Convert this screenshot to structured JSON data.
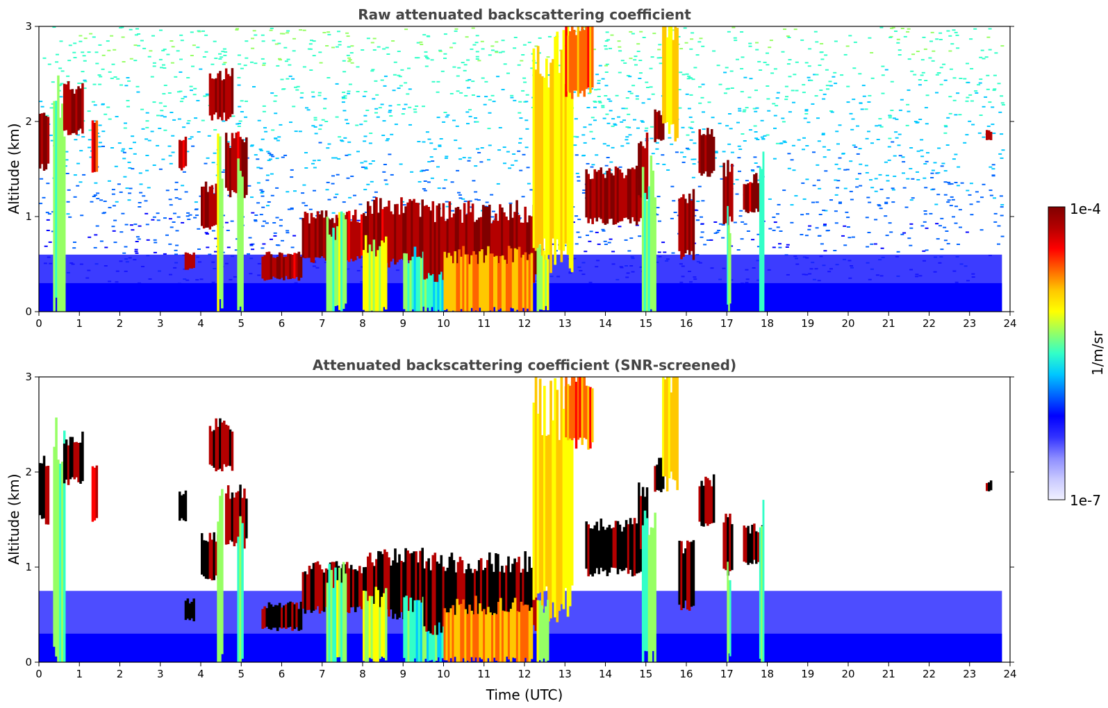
{
  "chart_data": [
    {
      "type": "heatmap",
      "title": "Raw attenuated backscattering coefficient",
      "xlabel": "",
      "ylabel": "Altitude (km)",
      "xlim": [
        0,
        24
      ],
      "ylim": [
        0,
        3
      ],
      "xticks": [
        "0",
        "1",
        "2",
        "3",
        "4",
        "5",
        "6",
        "7",
        "8",
        "9",
        "10",
        "11",
        "12",
        "13",
        "14",
        "15",
        "16",
        "17",
        "18",
        "19",
        "20",
        "21",
        "22",
        "23",
        "24"
      ],
      "yticks": [
        "0",
        "1",
        "2",
        "3"
      ],
      "data_extent_x": [
        0,
        23.8
      ],
      "background_noise": true,
      "features": [
        {
          "x0": 0.0,
          "x1": 0.25,
          "y0": 1.5,
          "y1": 2.1,
          "level": 0.95
        },
        {
          "x0": 0.35,
          "x1": 0.65,
          "y0": 0.0,
          "y1": 2.2,
          "level": 0.55
        },
        {
          "x0": 0.6,
          "x1": 1.1,
          "y0": 1.9,
          "y1": 2.35,
          "level": 0.95
        },
        {
          "x0": 1.3,
          "x1": 1.45,
          "y0": 1.5,
          "y1": 2.0,
          "level": 0.85
        },
        {
          "x0": 3.45,
          "x1": 3.65,
          "y0": 1.5,
          "y1": 1.8,
          "level": 0.9
        },
        {
          "x0": 3.6,
          "x1": 3.85,
          "y0": 0.45,
          "y1": 0.6,
          "level": 0.9
        },
        {
          "x0": 4.0,
          "x1": 4.5,
          "y0": 0.9,
          "y1": 1.3,
          "level": 0.95
        },
        {
          "x0": 4.2,
          "x1": 4.8,
          "y0": 2.05,
          "y1": 2.5,
          "level": 0.95
        },
        {
          "x0": 4.4,
          "x1": 4.55,
          "y0": 0.0,
          "y1": 1.6,
          "level": 0.55
        },
        {
          "x0": 4.6,
          "x1": 5.15,
          "y0": 1.25,
          "y1": 1.8,
          "level": 0.95
        },
        {
          "x0": 4.9,
          "x1": 5.05,
          "y0": 0.0,
          "y1": 1.5,
          "level": 0.55
        },
        {
          "x0": 5.5,
          "x1": 6.5,
          "y0": 0.35,
          "y1": 0.6,
          "level": 0.95
        },
        {
          "x0": 6.5,
          "x1": 8.0,
          "y0": 0.55,
          "y1": 1.0,
          "level": 0.95
        },
        {
          "x0": 7.1,
          "x1": 7.6,
          "y0": 0.0,
          "y1": 0.9,
          "level": 0.55
        },
        {
          "x0": 8.0,
          "x1": 9.5,
          "y0": 0.5,
          "y1": 1.1,
          "level": 0.95
        },
        {
          "x0": 8.0,
          "x1": 8.6,
          "y0": 0.0,
          "y1": 0.7,
          "level": 0.6
        },
        {
          "x0": 9.0,
          "x1": 10.0,
          "y0": 0.0,
          "y1": 0.6,
          "level": 0.5
        },
        {
          "x0": 9.5,
          "x1": 12.3,
          "y0": 0.35,
          "y1": 1.05,
          "level": 0.95
        },
        {
          "x0": 10.0,
          "x1": 12.2,
          "y0": 0.0,
          "y1": 0.6,
          "level": 0.75
        },
        {
          "x0": 12.2,
          "x1": 13.2,
          "y0": 0.6,
          "y1": 2.7,
          "level": 0.68
        },
        {
          "x0": 13.0,
          "x1": 13.7,
          "y0": 2.3,
          "y1": 3.0,
          "level": 0.78
        },
        {
          "x0": 12.3,
          "x1": 12.6,
          "y0": 0.0,
          "y1": 0.6,
          "level": 0.6
        },
        {
          "x0": 13.5,
          "x1": 14.9,
          "y0": 0.95,
          "y1": 1.45,
          "level": 0.95
        },
        {
          "x0": 14.8,
          "x1": 15.05,
          "y0": 1.2,
          "y1": 1.8,
          "level": 0.95
        },
        {
          "x0": 14.9,
          "x1": 15.25,
          "y0": 0.0,
          "y1": 1.4,
          "level": 0.55
        },
        {
          "x0": 15.2,
          "x1": 15.45,
          "y0": 1.8,
          "y1": 2.1,
          "level": 0.95
        },
        {
          "x0": 15.4,
          "x1": 15.8,
          "y0": 1.9,
          "y1": 3.0,
          "level": 0.68
        },
        {
          "x0": 15.8,
          "x1": 16.2,
          "y0": 0.6,
          "y1": 1.2,
          "level": 0.95
        },
        {
          "x0": 16.3,
          "x1": 16.7,
          "y0": 1.45,
          "y1": 1.9,
          "level": 0.95
        },
        {
          "x0": 16.9,
          "x1": 17.15,
          "y0": 0.95,
          "y1": 1.5,
          "level": 0.95
        },
        {
          "x0": 17.0,
          "x1": 17.1,
          "y0": 0.0,
          "y1": 1.0,
          "level": 0.55
        },
        {
          "x0": 17.4,
          "x1": 17.9,
          "y0": 1.05,
          "y1": 1.4,
          "level": 0.95
        },
        {
          "x0": 17.8,
          "x1": 17.92,
          "y0": 0.0,
          "y1": 1.5,
          "level": 0.5
        },
        {
          "x0": 23.4,
          "x1": 23.55,
          "y0": 1.8,
          "y1": 1.9,
          "level": 0.95
        }
      ]
    },
    {
      "type": "heatmap",
      "title": "Attenuated backscattering coefficient (SNR-screened)",
      "xlabel": "Time (UTC)",
      "ylabel": "Altitude (km)",
      "xlim": [
        0,
        24
      ],
      "ylim": [
        0,
        3
      ],
      "xticks": [
        "0",
        "1",
        "2",
        "3",
        "4",
        "5",
        "6",
        "7",
        "8",
        "9",
        "10",
        "11",
        "12",
        "13",
        "14",
        "15",
        "16",
        "17",
        "18",
        "19",
        "20",
        "21",
        "22",
        "23",
        "24"
      ],
      "yticks": [
        "0",
        "1",
        "2",
        "3"
      ],
      "data_extent_x": [
        0,
        23.8
      ],
      "background_noise": false,
      "saturated_color": "#000000",
      "features": [
        {
          "x0": 0.0,
          "x1": 0.25,
          "y0": 1.5,
          "y1": 2.1,
          "level": 0.97
        },
        {
          "x0": 0.35,
          "x1": 0.65,
          "y0": 0.0,
          "y1": 2.2,
          "level": 0.55
        },
        {
          "x0": 0.6,
          "x1": 1.1,
          "y0": 1.9,
          "y1": 2.35,
          "level": 0.97
        },
        {
          "x0": 1.3,
          "x1": 1.45,
          "y0": 1.5,
          "y1": 2.0,
          "level": 0.85
        },
        {
          "x0": 3.45,
          "x1": 3.65,
          "y0": 1.5,
          "y1": 1.8,
          "level": 0.97
        },
        {
          "x0": 3.6,
          "x1": 3.85,
          "y0": 0.45,
          "y1": 0.65,
          "level": 0.97
        },
        {
          "x0": 4.0,
          "x1": 4.5,
          "y0": 0.9,
          "y1": 1.3,
          "level": 0.97
        },
        {
          "x0": 4.2,
          "x1": 4.8,
          "y0": 2.05,
          "y1": 2.5,
          "level": 0.97
        },
        {
          "x0": 4.4,
          "x1": 4.55,
          "y0": 0.0,
          "y1": 1.6,
          "level": 0.55
        },
        {
          "x0": 4.6,
          "x1": 5.15,
          "y0": 1.25,
          "y1": 1.8,
          "level": 0.97
        },
        {
          "x0": 4.9,
          "x1": 5.05,
          "y0": 0.0,
          "y1": 1.5,
          "level": 0.55
        },
        {
          "x0": 5.5,
          "x1": 6.5,
          "y0": 0.35,
          "y1": 0.6,
          "level": 0.97
        },
        {
          "x0": 6.5,
          "x1": 8.0,
          "y0": 0.55,
          "y1": 1.0,
          "level": 0.97
        },
        {
          "x0": 7.1,
          "x1": 7.6,
          "y0": 0.0,
          "y1": 0.9,
          "level": 0.55
        },
        {
          "x0": 8.0,
          "x1": 9.5,
          "y0": 0.5,
          "y1": 1.1,
          "level": 0.97
        },
        {
          "x0": 8.0,
          "x1": 8.6,
          "y0": 0.0,
          "y1": 0.7,
          "level": 0.6
        },
        {
          "x0": 9.0,
          "x1": 10.0,
          "y0": 0.0,
          "y1": 0.6,
          "level": 0.5
        },
        {
          "x0": 9.5,
          "x1": 12.3,
          "y0": 0.35,
          "y1": 1.05,
          "level": 0.97
        },
        {
          "x0": 10.0,
          "x1": 12.2,
          "y0": 0.0,
          "y1": 0.6,
          "level": 0.75
        },
        {
          "x0": 12.2,
          "x1": 13.2,
          "y0": 0.6,
          "y1": 2.7,
          "level": 0.68
        },
        {
          "x0": 13.0,
          "x1": 13.7,
          "y0": 2.3,
          "y1": 3.0,
          "level": 0.78
        },
        {
          "x0": 12.3,
          "x1": 12.6,
          "y0": 0.0,
          "y1": 0.6,
          "level": 0.6
        },
        {
          "x0": 13.5,
          "x1": 14.9,
          "y0": 0.95,
          "y1": 1.45,
          "level": 0.97
        },
        {
          "x0": 14.8,
          "x1": 15.05,
          "y0": 1.2,
          "y1": 1.8,
          "level": 0.97
        },
        {
          "x0": 14.9,
          "x1": 15.25,
          "y0": 0.0,
          "y1": 1.4,
          "level": 0.55
        },
        {
          "x0": 15.2,
          "x1": 15.45,
          "y0": 1.8,
          "y1": 2.1,
          "level": 0.97
        },
        {
          "x0": 15.4,
          "x1": 15.8,
          "y0": 1.9,
          "y1": 3.0,
          "level": 0.68
        },
        {
          "x0": 15.8,
          "x1": 16.2,
          "y0": 0.6,
          "y1": 1.2,
          "level": 0.97
        },
        {
          "x0": 16.3,
          "x1": 16.7,
          "y0": 1.45,
          "y1": 1.9,
          "level": 0.97
        },
        {
          "x0": 16.9,
          "x1": 17.15,
          "y0": 0.95,
          "y1": 1.5,
          "level": 0.97
        },
        {
          "x0": 17.0,
          "x1": 17.1,
          "y0": 0.0,
          "y1": 1.0,
          "level": 0.55
        },
        {
          "x0": 17.4,
          "x1": 17.9,
          "y0": 1.05,
          "y1": 1.4,
          "level": 0.97
        },
        {
          "x0": 17.8,
          "x1": 17.92,
          "y0": 0.0,
          "y1": 1.5,
          "level": 0.5
        },
        {
          "x0": 23.4,
          "x1": 23.55,
          "y0": 1.8,
          "y1": 1.9,
          "level": 0.97
        }
      ]
    }
  ],
  "colorbar": {
    "label": "1/m/sr",
    "max_label": "1e-4",
    "min_label": "1e-7",
    "colormap": "jet with white-lavender low end",
    "colors": [
      "#f0f0ff",
      "#c8c8ff",
      "#8c8cff",
      "#3232ff",
      "#0000ff",
      "#0064ff",
      "#00c8ff",
      "#32ffc8",
      "#96ff64",
      "#ffff00",
      "#ffc800",
      "#ff6400",
      "#ff0000",
      "#b40000",
      "#800000"
    ]
  }
}
